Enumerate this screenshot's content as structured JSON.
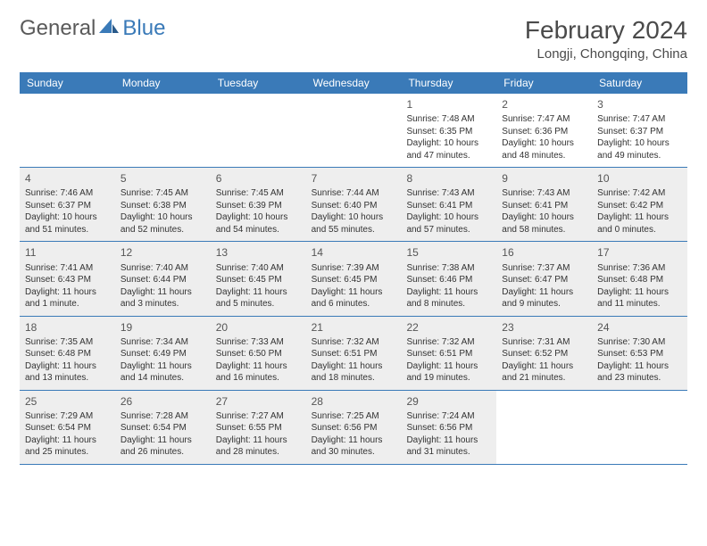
{
  "brand": {
    "part1": "General",
    "part2": "Blue"
  },
  "title": "February 2024",
  "location": "Longji, Chongqing, China",
  "style": {
    "header_bg": "#3a7ab8",
    "header_text": "#ffffff",
    "rule_color": "#3a7ab8",
    "shaded_bg": "#eeeeee",
    "body_bg": "#ffffff",
    "text_color": "#333333",
    "title_color": "#4a4a4a",
    "day_number_color": "#555555",
    "title_fontsize": 28,
    "location_fontsize": 15,
    "weekday_fontsize": 12,
    "daynum_fontsize": 12,
    "info_fontsize": 10
  },
  "weekdays": [
    "Sunday",
    "Monday",
    "Tuesday",
    "Wednesday",
    "Thursday",
    "Friday",
    "Saturday"
  ],
  "weeks": [
    [
      {
        "n": "",
        "sr": "",
        "ss": "",
        "dl": "",
        "shaded": false
      },
      {
        "n": "",
        "sr": "",
        "ss": "",
        "dl": "",
        "shaded": false
      },
      {
        "n": "",
        "sr": "",
        "ss": "",
        "dl": "",
        "shaded": false
      },
      {
        "n": "",
        "sr": "",
        "ss": "",
        "dl": "",
        "shaded": false
      },
      {
        "n": "1",
        "sr": "Sunrise: 7:48 AM",
        "ss": "Sunset: 6:35 PM",
        "dl": "Daylight: 10 hours and 47 minutes.",
        "shaded": false
      },
      {
        "n": "2",
        "sr": "Sunrise: 7:47 AM",
        "ss": "Sunset: 6:36 PM",
        "dl": "Daylight: 10 hours and 48 minutes.",
        "shaded": false
      },
      {
        "n": "3",
        "sr": "Sunrise: 7:47 AM",
        "ss": "Sunset: 6:37 PM",
        "dl": "Daylight: 10 hours and 49 minutes.",
        "shaded": false
      }
    ],
    [
      {
        "n": "4",
        "sr": "Sunrise: 7:46 AM",
        "ss": "Sunset: 6:37 PM",
        "dl": "Daylight: 10 hours and 51 minutes.",
        "shaded": true
      },
      {
        "n": "5",
        "sr": "Sunrise: 7:45 AM",
        "ss": "Sunset: 6:38 PM",
        "dl": "Daylight: 10 hours and 52 minutes.",
        "shaded": true
      },
      {
        "n": "6",
        "sr": "Sunrise: 7:45 AM",
        "ss": "Sunset: 6:39 PM",
        "dl": "Daylight: 10 hours and 54 minutes.",
        "shaded": true
      },
      {
        "n": "7",
        "sr": "Sunrise: 7:44 AM",
        "ss": "Sunset: 6:40 PM",
        "dl": "Daylight: 10 hours and 55 minutes.",
        "shaded": true
      },
      {
        "n": "8",
        "sr": "Sunrise: 7:43 AM",
        "ss": "Sunset: 6:41 PM",
        "dl": "Daylight: 10 hours and 57 minutes.",
        "shaded": true
      },
      {
        "n": "9",
        "sr": "Sunrise: 7:43 AM",
        "ss": "Sunset: 6:41 PM",
        "dl": "Daylight: 10 hours and 58 minutes.",
        "shaded": true
      },
      {
        "n": "10",
        "sr": "Sunrise: 7:42 AM",
        "ss": "Sunset: 6:42 PM",
        "dl": "Daylight: 11 hours and 0 minutes.",
        "shaded": true
      }
    ],
    [
      {
        "n": "11",
        "sr": "Sunrise: 7:41 AM",
        "ss": "Sunset: 6:43 PM",
        "dl": "Daylight: 11 hours and 1 minute.",
        "shaded": true
      },
      {
        "n": "12",
        "sr": "Sunrise: 7:40 AM",
        "ss": "Sunset: 6:44 PM",
        "dl": "Daylight: 11 hours and 3 minutes.",
        "shaded": true
      },
      {
        "n": "13",
        "sr": "Sunrise: 7:40 AM",
        "ss": "Sunset: 6:45 PM",
        "dl": "Daylight: 11 hours and 5 minutes.",
        "shaded": true
      },
      {
        "n": "14",
        "sr": "Sunrise: 7:39 AM",
        "ss": "Sunset: 6:45 PM",
        "dl": "Daylight: 11 hours and 6 minutes.",
        "shaded": true
      },
      {
        "n": "15",
        "sr": "Sunrise: 7:38 AM",
        "ss": "Sunset: 6:46 PM",
        "dl": "Daylight: 11 hours and 8 minutes.",
        "shaded": true
      },
      {
        "n": "16",
        "sr": "Sunrise: 7:37 AM",
        "ss": "Sunset: 6:47 PM",
        "dl": "Daylight: 11 hours and 9 minutes.",
        "shaded": true
      },
      {
        "n": "17",
        "sr": "Sunrise: 7:36 AM",
        "ss": "Sunset: 6:48 PM",
        "dl": "Daylight: 11 hours and 11 minutes.",
        "shaded": true
      }
    ],
    [
      {
        "n": "18",
        "sr": "Sunrise: 7:35 AM",
        "ss": "Sunset: 6:48 PM",
        "dl": "Daylight: 11 hours and 13 minutes.",
        "shaded": true
      },
      {
        "n": "19",
        "sr": "Sunrise: 7:34 AM",
        "ss": "Sunset: 6:49 PM",
        "dl": "Daylight: 11 hours and 14 minutes.",
        "shaded": true
      },
      {
        "n": "20",
        "sr": "Sunrise: 7:33 AM",
        "ss": "Sunset: 6:50 PM",
        "dl": "Daylight: 11 hours and 16 minutes.",
        "shaded": true
      },
      {
        "n": "21",
        "sr": "Sunrise: 7:32 AM",
        "ss": "Sunset: 6:51 PM",
        "dl": "Daylight: 11 hours and 18 minutes.",
        "shaded": true
      },
      {
        "n": "22",
        "sr": "Sunrise: 7:32 AM",
        "ss": "Sunset: 6:51 PM",
        "dl": "Daylight: 11 hours and 19 minutes.",
        "shaded": true
      },
      {
        "n": "23",
        "sr": "Sunrise: 7:31 AM",
        "ss": "Sunset: 6:52 PM",
        "dl": "Daylight: 11 hours and 21 minutes.",
        "shaded": true
      },
      {
        "n": "24",
        "sr": "Sunrise: 7:30 AM",
        "ss": "Sunset: 6:53 PM",
        "dl": "Daylight: 11 hours and 23 minutes.",
        "shaded": true
      }
    ],
    [
      {
        "n": "25",
        "sr": "Sunrise: 7:29 AM",
        "ss": "Sunset: 6:54 PM",
        "dl": "Daylight: 11 hours and 25 minutes.",
        "shaded": true
      },
      {
        "n": "26",
        "sr": "Sunrise: 7:28 AM",
        "ss": "Sunset: 6:54 PM",
        "dl": "Daylight: 11 hours and 26 minutes.",
        "shaded": true
      },
      {
        "n": "27",
        "sr": "Sunrise: 7:27 AM",
        "ss": "Sunset: 6:55 PM",
        "dl": "Daylight: 11 hours and 28 minutes.",
        "shaded": true
      },
      {
        "n": "28",
        "sr": "Sunrise: 7:25 AM",
        "ss": "Sunset: 6:56 PM",
        "dl": "Daylight: 11 hours and 30 minutes.",
        "shaded": true
      },
      {
        "n": "29",
        "sr": "Sunrise: 7:24 AM",
        "ss": "Sunset: 6:56 PM",
        "dl": "Daylight: 11 hours and 31 minutes.",
        "shaded": true
      },
      {
        "n": "",
        "sr": "",
        "ss": "",
        "dl": "",
        "shaded": false
      },
      {
        "n": "",
        "sr": "",
        "ss": "",
        "dl": "",
        "shaded": false
      }
    ]
  ]
}
